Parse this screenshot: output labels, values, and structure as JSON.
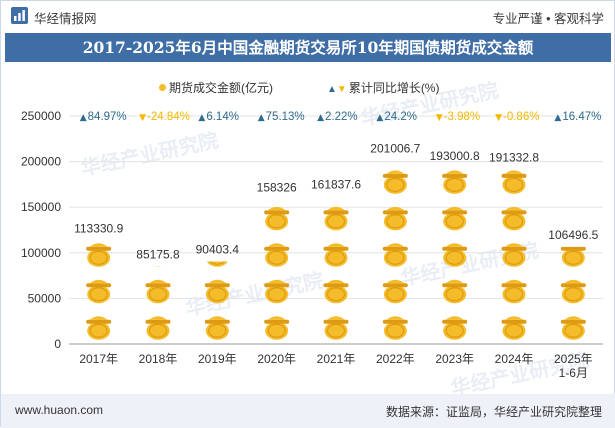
{
  "header": {
    "brand": "华经情报网",
    "slogan": "专业严谨 • 客观科学"
  },
  "footer": {
    "website": "www.huaon.com",
    "source": "数据来源：证监局，华经产业研究院整理"
  },
  "watermark": "华经产业研究院",
  "colors": {
    "title_bg": "#3f6da6",
    "coin": "#f5bc2a",
    "coin_dark": "#dd9a12",
    "up": "#2e6b8f",
    "down": "#f3b800",
    "grid": "#e3e3e3"
  },
  "chart_data": {
    "type": "bar",
    "title": "2017-2025年6月中国金融期货交易所10年期国债期货成交金额",
    "categories": [
      "2017年",
      "2018年",
      "2019年",
      "2020年",
      "2021年",
      "2022年",
      "2023年",
      "2024年",
      "2025年\n1-6月"
    ],
    "series": [
      {
        "name": "期货成交金额(亿元)",
        "values": [
          113330.9,
          85175.8,
          90403.4,
          158326,
          161837.6,
          201006.7,
          193000.8,
          191332.8,
          106496.5
        ],
        "labels": [
          "113330.9",
          "85175.8",
          "90403.4",
          "158326",
          "161837.6",
          "201006.7",
          "193000.8",
          "191332.8",
          "106496.5"
        ]
      },
      {
        "name": "累计同比增长(%)",
        "values": [
          84.97,
          -24.84,
          6.14,
          75.13,
          2.22,
          24.2,
          -3.98,
          -0.86,
          16.47
        ],
        "labels": [
          "84.97%",
          "-24.84%",
          "6.14%",
          "75.13%",
          "2.22%",
          "24.2%",
          "-3.98%",
          "-0.86%",
          "16.47%"
        ]
      }
    ],
    "ylim": [
      0,
      250000
    ],
    "yticks": [
      0,
      50000,
      100000,
      150000,
      200000,
      250000
    ],
    "ytick_labels": [
      "0",
      "50000",
      "100000",
      "150000",
      "200000",
      "250000"
    ],
    "unit_per_icon": 40000,
    "grid": true,
    "legend": "top-center"
  }
}
